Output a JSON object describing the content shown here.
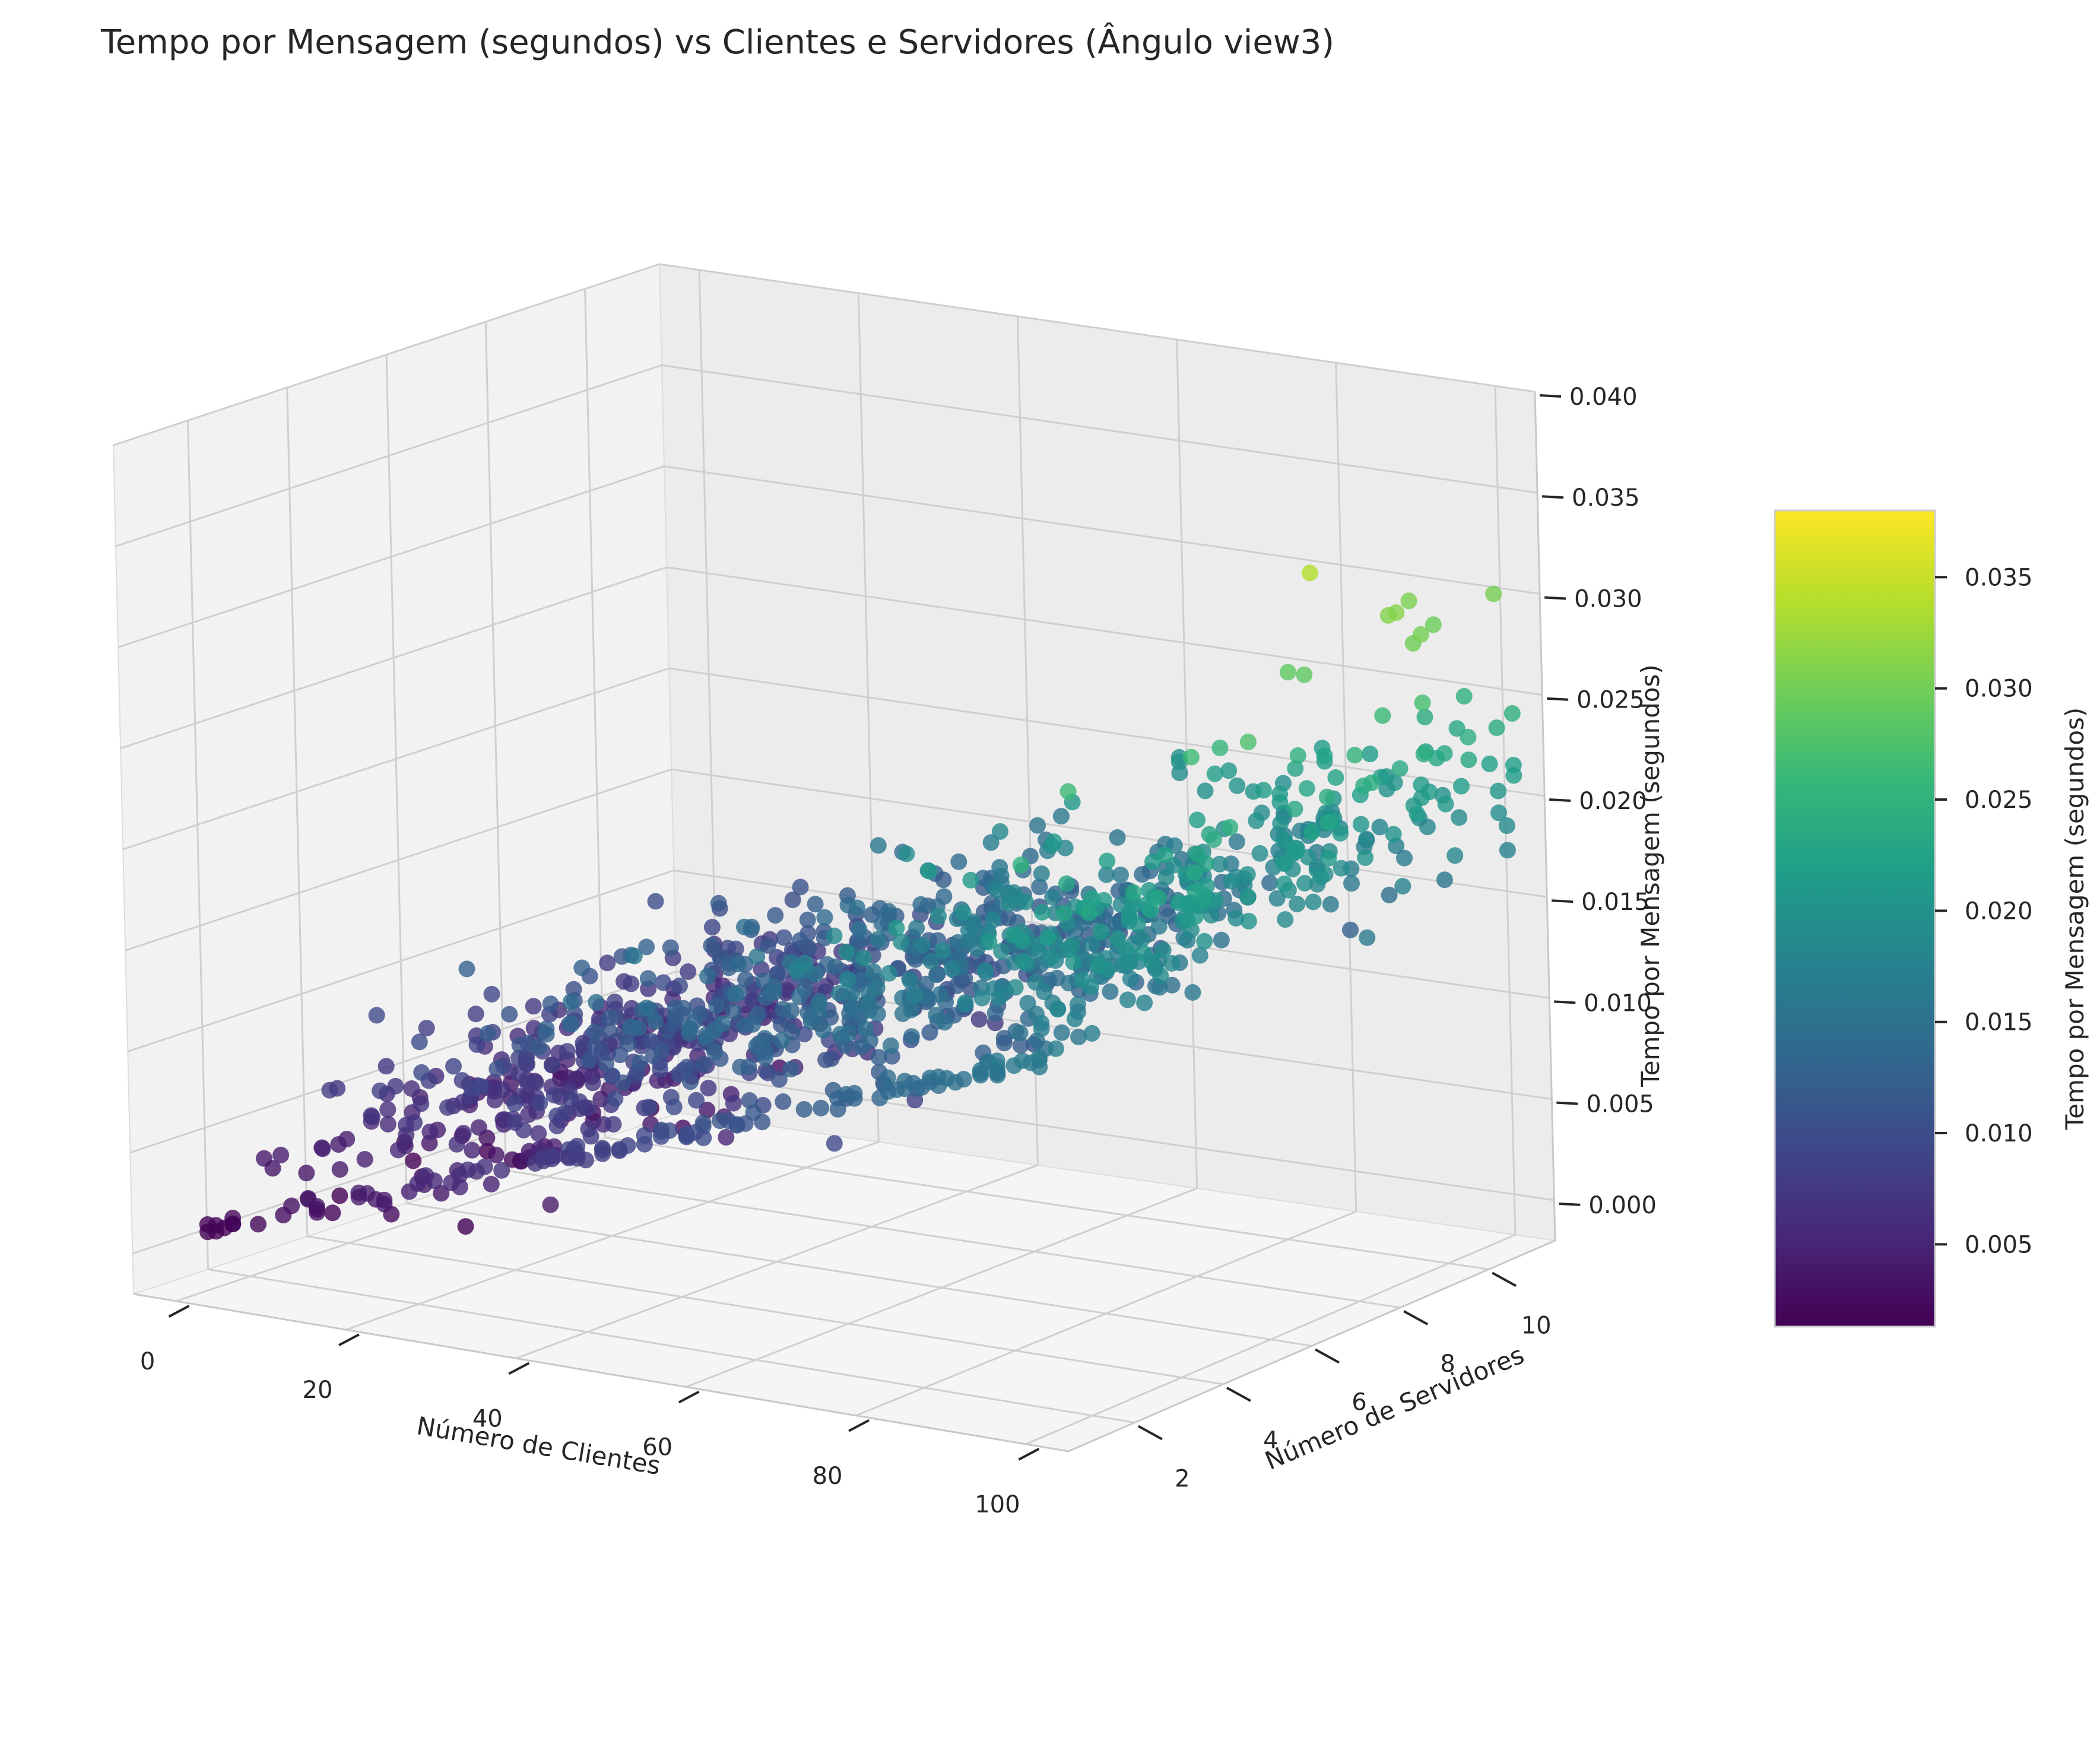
{
  "chart_data": {
    "type": "scatter",
    "projection": "3d",
    "title": "Tempo por Mensagem (segundos) vs Clientes e Servidores (Ângulo view3)",
    "xlabel": "Número de Clientes",
    "ylabel": "Número de Servidores",
    "zlabel": "Tempo por Mensagem (segundos)",
    "xlim": [
      -5,
      105
    ],
    "ylim": [
      0.5,
      11.5
    ],
    "zlim": [
      -0.002,
      0.04
    ],
    "x_ticks": [
      {
        "value": 0,
        "label": "0"
      },
      {
        "value": 20,
        "label": "20"
      },
      {
        "value": 40,
        "label": "40"
      },
      {
        "value": 60,
        "label": "60"
      },
      {
        "value": 80,
        "label": "80"
      },
      {
        "value": 100,
        "label": "100"
      }
    ],
    "y_ticks": [
      {
        "value": 2,
        "label": "2"
      },
      {
        "value": 4,
        "label": "4"
      },
      {
        "value": 6,
        "label": "6"
      },
      {
        "value": 8,
        "label": "8"
      },
      {
        "value": 10,
        "label": "10"
      }
    ],
    "z_ticks": [
      {
        "value": 0.0,
        "label": "0.000"
      },
      {
        "value": 0.005,
        "label": "0.005"
      },
      {
        "value": 0.01,
        "label": "0.010"
      },
      {
        "value": 0.015,
        "label": "0.015"
      },
      {
        "value": 0.02,
        "label": "0.020"
      },
      {
        "value": 0.025,
        "label": "0.025"
      },
      {
        "value": 0.03,
        "label": "0.030"
      },
      {
        "value": 0.035,
        "label": "0.035"
      },
      {
        "value": 0.04,
        "label": "0.040"
      }
    ],
    "colorbar": {
      "label": "Tempo por Mensagem (segundos)",
      "colormap": "viridis",
      "range": [
        0.0013,
        0.038
      ],
      "ticks": [
        {
          "value": 0.005,
          "label": "0.005"
        },
        {
          "value": 0.01,
          "label": "0.010"
        },
        {
          "value": 0.015,
          "label": "0.015"
        },
        {
          "value": 0.02,
          "label": "0.020"
        },
        {
          "value": 0.025,
          "label": "0.025"
        },
        {
          "value": 0.03,
          "label": "0.030"
        },
        {
          "value": 0.035,
          "label": "0.035"
        }
      ]
    },
    "colors": {
      "viridis": [
        "#440154",
        "#482878",
        "#3e4989",
        "#31688e",
        "#26828e",
        "#1f9e89",
        "#35b779",
        "#6ece58",
        "#b5de2b",
        "#fde725"
      ],
      "pane_left": "#f2f2f2",
      "pane_back": "#ececec",
      "pane_floor": "#f4f4f4",
      "grid": "#cfcfcf"
    },
    "grid": true,
    "point_alpha": 0.8,
    "outlier_points": [
      [
        96,
        8,
        0.0338
      ],
      [
        100,
        10,
        0.0296
      ],
      [
        100,
        9,
        0.031
      ],
      [
        102,
        11,
        0.0303
      ],
      [
        101,
        9,
        0.0312
      ],
      [
        104,
        9,
        0.0303
      ],
      [
        103,
        9,
        0.0298
      ],
      [
        97,
        10,
        0.0306
      ],
      [
        95,
        8,
        0.0287
      ],
      [
        93,
        8,
        0.0287
      ],
      [
        99,
        6,
        0.0275
      ],
      [
        92,
        6,
        0.0263
      ],
      [
        90,
        7,
        0.0257
      ],
      [
        88,
        4,
        0.0262
      ],
      [
        98,
        11,
        0.025
      ]
    ],
    "generated_series": {
      "x_range": [
        1,
        104
      ],
      "y_values": [
        1,
        2,
        3,
        4,
        5,
        6,
        7,
        8,
        9,
        10,
        11
      ],
      "count": 1300,
      "note_model": "mensagem"
    }
  }
}
